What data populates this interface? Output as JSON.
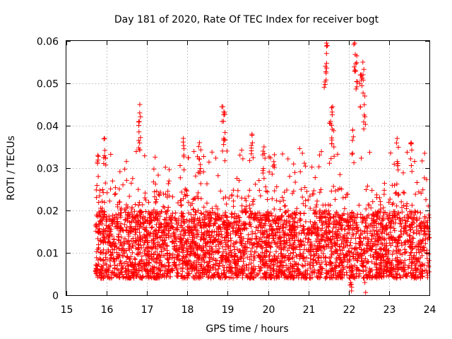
{
  "chart_data": {
    "type": "scatter",
    "title": "Day 181 of 2020, Rate Of TEC Index for receiver bogt",
    "xlabel": "GPS time / hours",
    "ylabel": "ROTI / TECUs",
    "xlim": [
      15,
      24
    ],
    "ylim": [
      0,
      0.06
    ],
    "x_ticks": [
      "15",
      "16",
      "17",
      "18",
      "19",
      "20",
      "21",
      "22",
      "23",
      "24"
    ],
    "y_ticks": [
      "0",
      "0.01",
      "0.02",
      "0.03",
      "0.04",
      "0.05",
      "0.06"
    ],
    "grid": true,
    "marker": "plus",
    "color": "#ff0000",
    "series": [
      {
        "x_start": 15.72,
        "x_end": 24.0,
        "notable_points": [
          {
            "x": 15.78,
            "y": 0.033
          },
          {
            "x": 15.95,
            "y": 0.037
          },
          {
            "x": 16.82,
            "y": 0.045
          },
          {
            "x": 16.8,
            "y": 0.041
          },
          {
            "x": 17.9,
            "y": 0.037
          },
          {
            "x": 18.3,
            "y": 0.036
          },
          {
            "x": 18.88,
            "y": 0.0445
          },
          {
            "x": 18.92,
            "y": 0.043
          },
          {
            "x": 19.6,
            "y": 0.038
          },
          {
            "x": 19.9,
            "y": 0.035
          },
          {
            "x": 21.45,
            "y": 0.0595
          },
          {
            "x": 21.42,
            "y": 0.054
          },
          {
            "x": 21.6,
            "y": 0.0445
          },
          {
            "x": 21.55,
            "y": 0.041
          },
          {
            "x": 22.15,
            "y": 0.0595
          },
          {
            "x": 22.2,
            "y": 0.0565
          },
          {
            "x": 22.35,
            "y": 0.055
          },
          {
            "x": 22.3,
            "y": 0.052
          },
          {
            "x": 22.4,
            "y": 0.047
          },
          {
            "x": 22.1,
            "y": 0.039
          },
          {
            "x": 22.05,
            "y": 0.003
          },
          {
            "x": 22.4,
            "y": 0.003
          },
          {
            "x": 23.2,
            "y": 0.037
          },
          {
            "x": 23.55,
            "y": 0.036
          }
        ],
        "bulk_band": {
          "y_min": 0.004,
          "y_max": 0.025,
          "typical": 0.012
        }
      }
    ]
  }
}
